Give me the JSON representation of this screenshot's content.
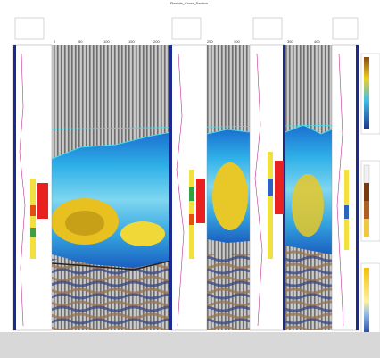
{
  "header": {
    "title": "Flexible_Cross_Section"
  },
  "axis": {
    "ticks": [
      "0",
      "50",
      "100",
      "150",
      "200",
      "250",
      "300",
      "350",
      "400"
    ]
  }
}
